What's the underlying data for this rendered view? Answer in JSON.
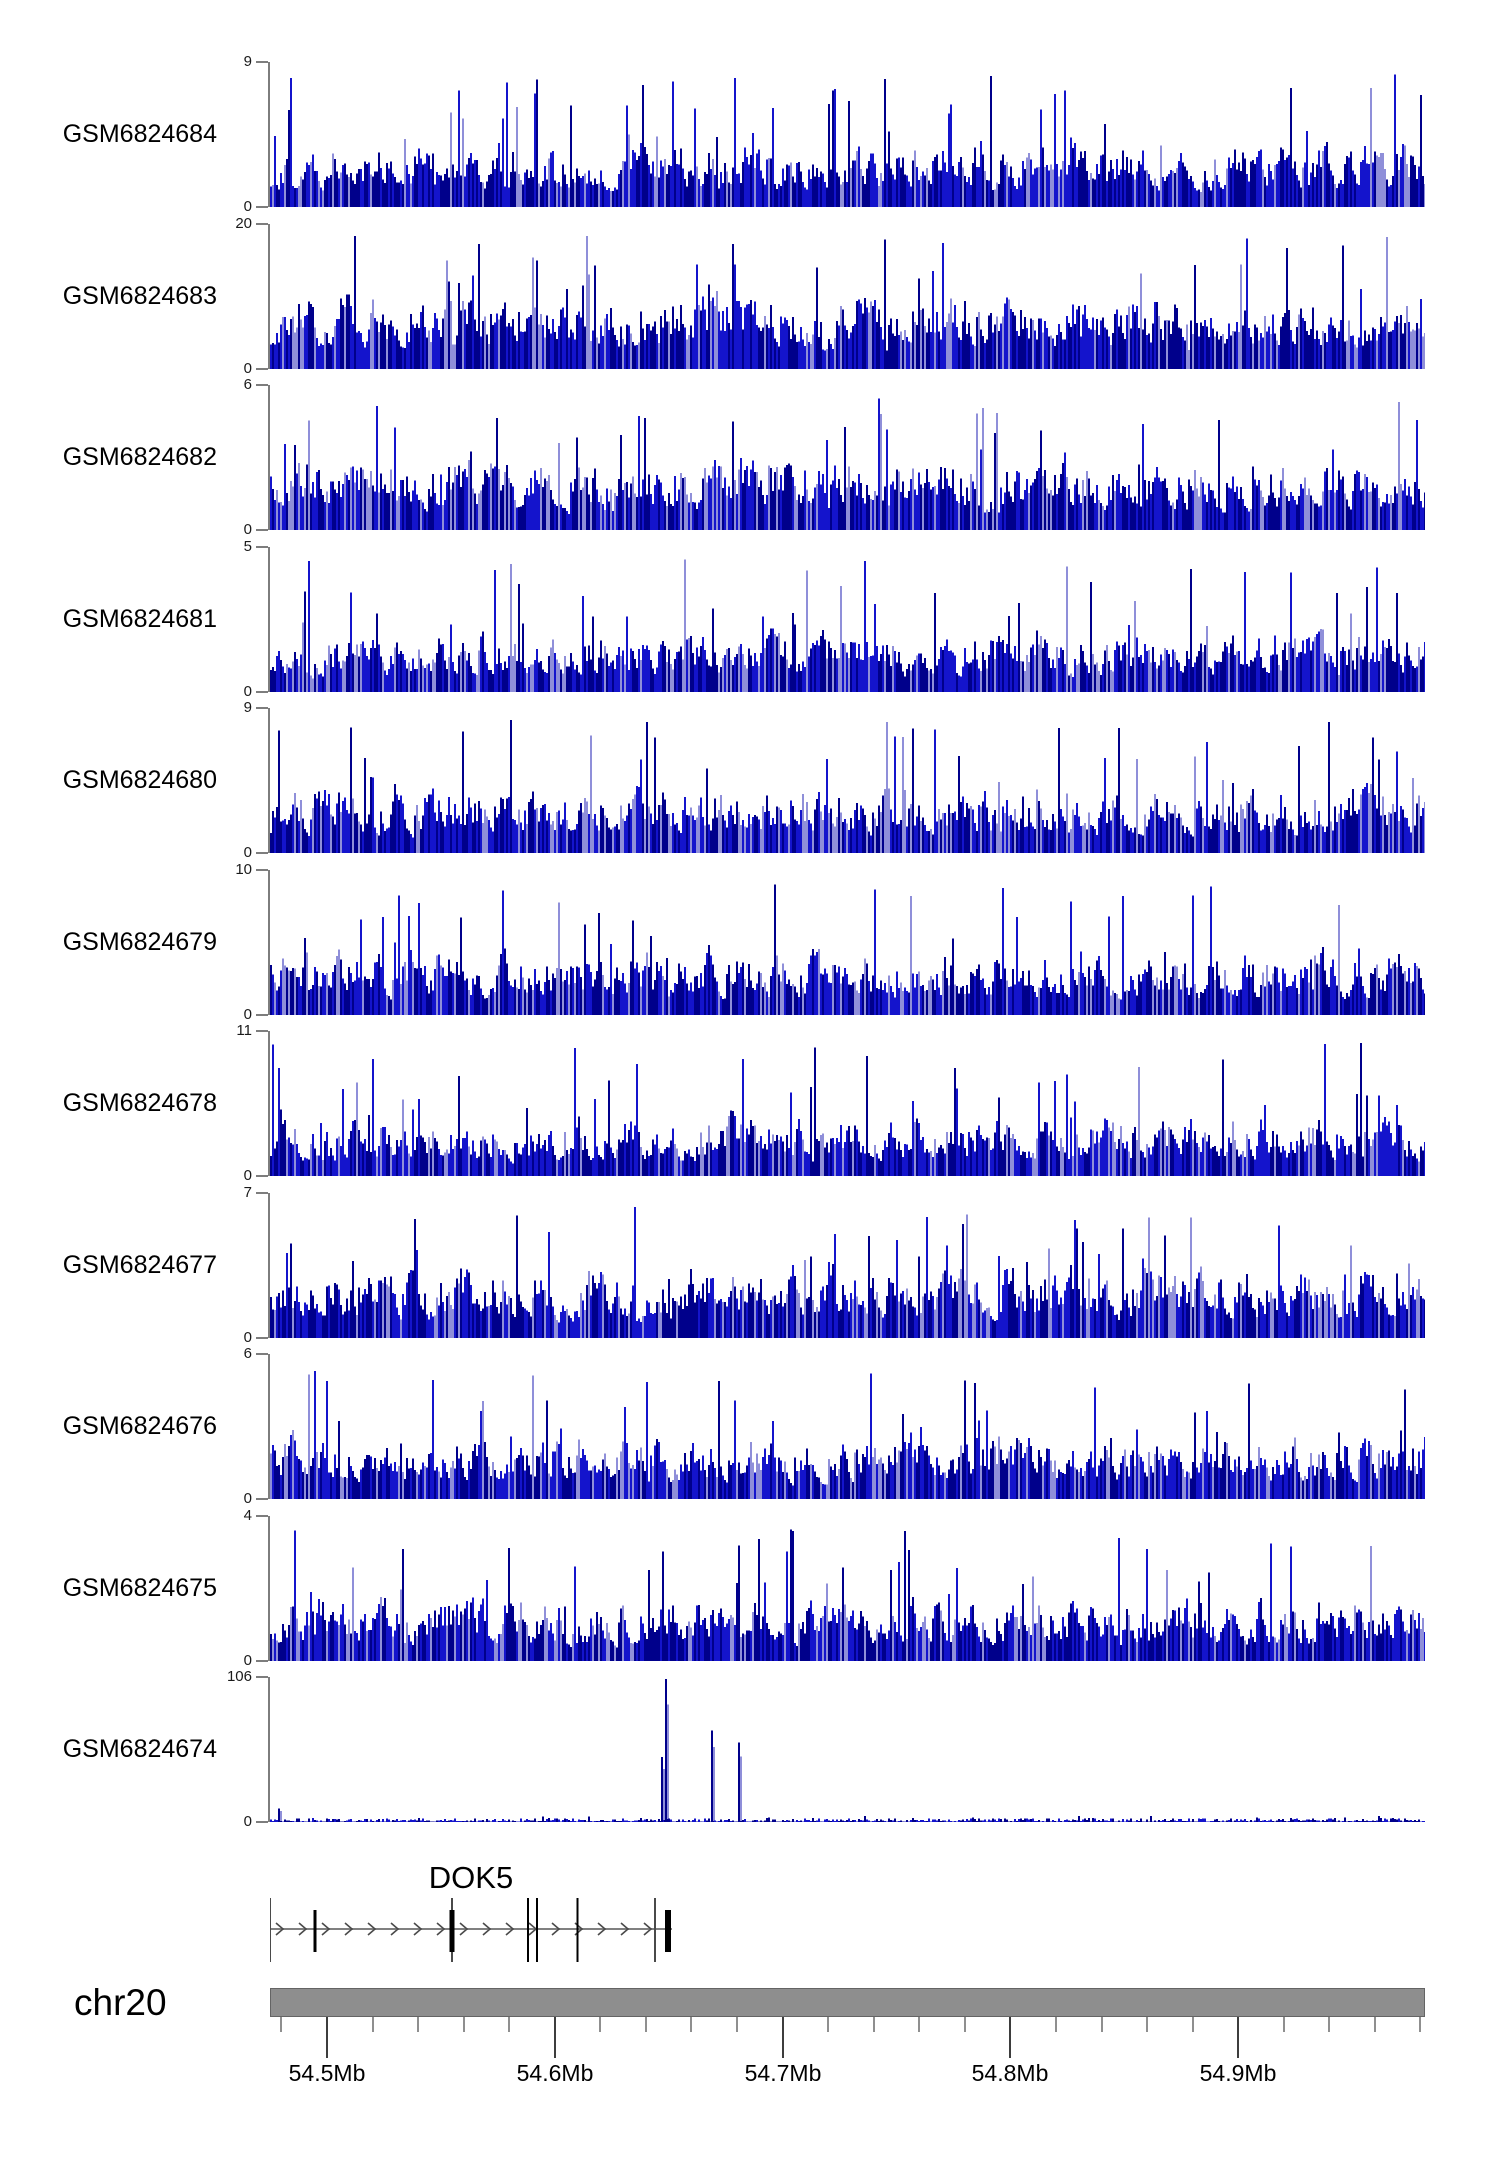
{
  "labels": {
    "chromosome": "chr20"
  },
  "chart_data": {
    "type": "area",
    "title": "",
    "description": "Genome browser coverage view: 11 sample read-coverage histogram tracks over chr20 with DOK5 gene model and chromosome coordinate axis",
    "region": {
      "chromosome": "chr20",
      "start_mb": 54.475,
      "end_mb": 54.982,
      "unit": "Mb"
    },
    "axis": {
      "major_ticks_mb": [
        54.5,
        54.6,
        54.7,
        54.8,
        54.9
      ],
      "major_tick_labels": [
        "54.5Mb",
        "54.6Mb",
        "54.7Mb",
        "54.8Mb",
        "54.9Mb"
      ],
      "minor_tick_step_mb": 0.02,
      "ideogram_color": "#8e8e8e",
      "ideogram_border": "#646464"
    },
    "colors": {
      "bar_dark": "#00008B",
      "bar_mid": "#1414CC",
      "bar_light": "#8F8FD9",
      "axis_gray": "#7d7d7d",
      "gene_line": "#808080",
      "exon_gray": "#4a4a4a",
      "exon_black": "#000000"
    },
    "tracks": [
      {
        "id": "GSM6824684",
        "ylim": [
          0,
          9
        ],
        "style": "dense-coverage",
        "seed": 101,
        "base": 0.3,
        "spike_rate": 0.1
      },
      {
        "id": "GSM6824683",
        "ylim": [
          0,
          20
        ],
        "style": "dense-coverage",
        "seed": 202,
        "base": 0.36,
        "spike_rate": 0.09
      },
      {
        "id": "GSM6824682",
        "ylim": [
          0,
          6
        ],
        "style": "dense-coverage",
        "seed": 303,
        "base": 0.34,
        "spike_rate": 0.1
      },
      {
        "id": "GSM6824681",
        "ylim": [
          0,
          5
        ],
        "style": "dense-coverage",
        "seed": 404,
        "base": 0.27,
        "spike_rate": 0.09
      },
      {
        "id": "GSM6824680",
        "ylim": [
          0,
          9
        ],
        "style": "dense-coverage",
        "seed": 505,
        "base": 0.31,
        "spike_rate": 0.1
      },
      {
        "id": "GSM6824679",
        "ylim": [
          0,
          10
        ],
        "style": "dense-coverage",
        "seed": 606,
        "base": 0.3,
        "spike_rate": 0.1
      },
      {
        "id": "GSM6824678",
        "ylim": [
          0,
          11
        ],
        "style": "dense-coverage",
        "seed": 707,
        "base": 0.28,
        "spike_rate": 0.09
      },
      {
        "id": "GSM6824677",
        "ylim": [
          0,
          7
        ],
        "style": "dense-coverage",
        "seed": 808,
        "base": 0.33,
        "spike_rate": 0.1
      },
      {
        "id": "GSM6824676",
        "ylim": [
          0,
          6
        ],
        "style": "dense-coverage",
        "seed": 909,
        "base": 0.3,
        "spike_rate": 0.09
      },
      {
        "id": "GSM6824675",
        "ylim": [
          0,
          4
        ],
        "style": "dense-coverage",
        "seed": 1010,
        "base": 0.3,
        "spike_rate": 0.07
      },
      {
        "id": "GSM6824674",
        "ylim": [
          0,
          106
        ],
        "style": "sparse-peaks",
        "seed": 1111,
        "noise": 0.02,
        "peaks": [
          {
            "pos_mb": 54.479,
            "value": 10
          },
          {
            "pos_mb": 54.647,
            "value": 48
          },
          {
            "pos_mb": 54.649,
            "value": 106
          },
          {
            "pos_mb": 54.669,
            "value": 68
          },
          {
            "pos_mb": 54.681,
            "value": 59
          }
        ]
      }
    ],
    "gene_track": {
      "gene_name": "DOK5",
      "strand": "+",
      "span_mb": [
        54.475,
        54.6515
      ],
      "exons": [
        {
          "pos_mb": 54.475,
          "w": 2,
          "style": "utr-line"
        },
        {
          "pos_mb": 54.4947,
          "w": 3,
          "style": "cds-block"
        },
        {
          "pos_mb": 54.5548,
          "w": 2,
          "style": "utr-line"
        },
        {
          "pos_mb": 54.555,
          "w": 5,
          "style": "cds-block"
        },
        {
          "pos_mb": 54.5882,
          "w": 2,
          "style": "exon-line"
        },
        {
          "pos_mb": 54.5921,
          "w": 2,
          "style": "exon-line"
        },
        {
          "pos_mb": 54.61,
          "w": 2,
          "style": "exon-line"
        },
        {
          "pos_mb": 54.644,
          "w": 2,
          "style": "utr-line"
        },
        {
          "pos_mb": 54.6496,
          "w": 6,
          "style": "cds-block"
        }
      ]
    }
  }
}
